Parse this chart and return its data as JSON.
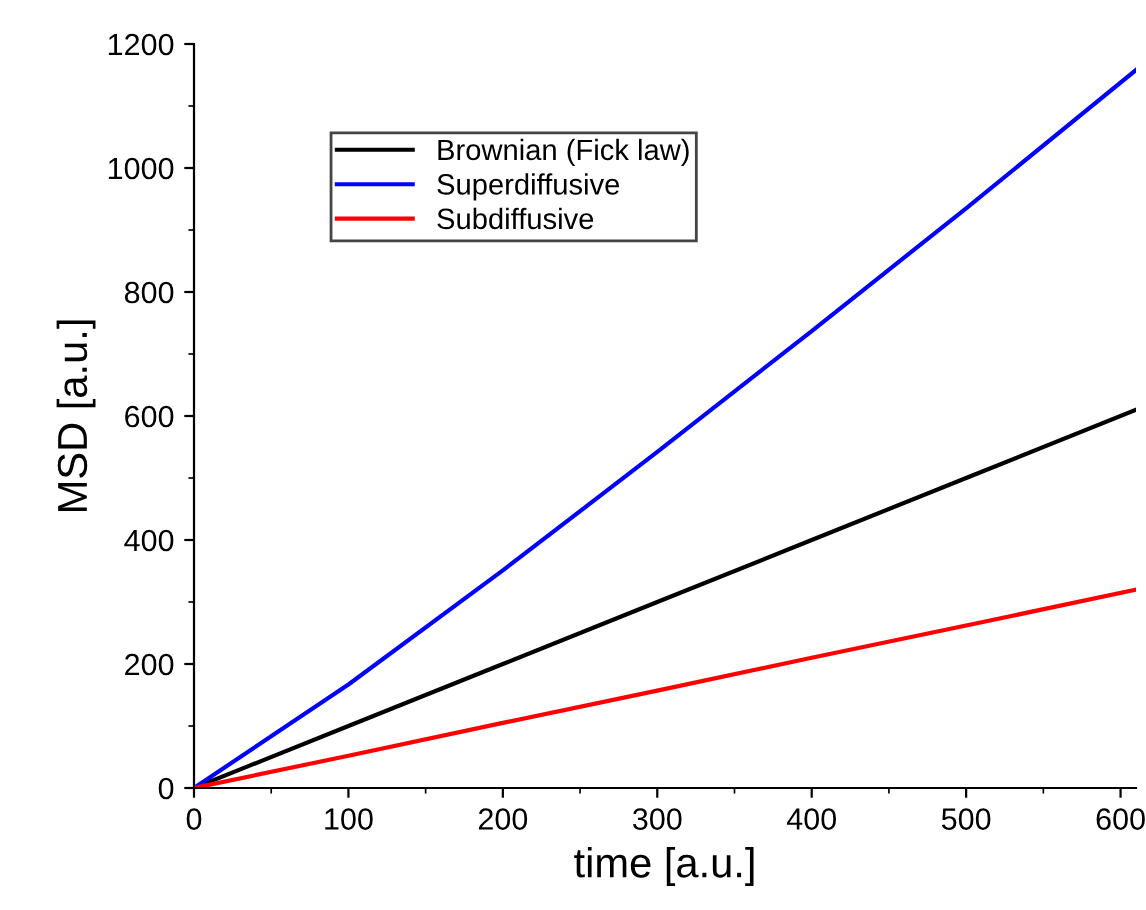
{
  "chart_data": {
    "type": "line",
    "xlabel": "time [a.u.]",
    "ylabel": "MSD [a.u.]",
    "x": [
      0,
      100,
      200,
      300,
      400,
      500,
      610
    ],
    "series": [
      {
        "name": "Brownian (Fick law)",
        "color": "#000000",
        "values": [
          0,
          100,
          200,
          300,
          400,
          500,
          610
        ]
      },
      {
        "name": "Superdiffusive",
        "color": "#0000ff",
        "values": [
          0,
          167,
          351,
          542,
          737,
          935,
          1158
        ]
      },
      {
        "name": "Subdiffusive",
        "color": "#ff0000",
        "values": [
          0,
          52,
          105,
          157,
          210,
          262,
          320
        ]
      }
    ],
    "xlim": [
      0,
      610
    ],
    "ylim": [
      0,
      1200
    ],
    "xticks": [
      0,
      100,
      200,
      300,
      400,
      500,
      600
    ],
    "yticks": [
      0,
      200,
      400,
      600,
      800,
      1000,
      1200
    ],
    "grid": false,
    "legend": "top left",
    "marker": "none",
    "line_style": "solid"
  }
}
